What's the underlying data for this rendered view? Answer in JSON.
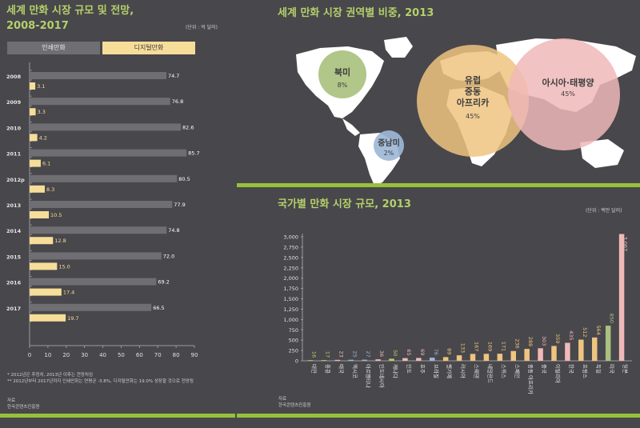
{
  "left": {
    "title_line1": "세계 만화 시장 규모 및 전망,",
    "title_line2": "2008-2017",
    "unit": "(단위 : 억 달러)",
    "legend_print": "인쇄만화",
    "legend_digital": "디지털만화",
    "footnote1": "* 2012년은 추정치, 2013년 이후는 전망치임",
    "footnote2": "** 2012년부터 2017년까지 인쇄만화는 연평균 -3.8%, 디지털만화는 19.0% 성장할 것으로 전망됨",
    "source_label": "자료",
    "source_text": "한국콘텐츠진흥원"
  },
  "map": {
    "title": "세계 만화 시장 권역별 비중, 2013",
    "regions": [
      {
        "name": "북미",
        "pct": "8%"
      },
      {
        "name": "중남미",
        "pct": "2%"
      },
      {
        "name": "유럽\n중동\n아프리카",
        "pct": "45%"
      },
      {
        "name": "아시아·태평양",
        "pct": "45%"
      }
    ]
  },
  "country": {
    "title": "국가별 만화 시장 규모, 2013",
    "unit": "(단위 : 백만 달러)",
    "source_label": "자료",
    "source_text": "한국콘텐츠진흥원"
  },
  "colors": {
    "background": "#48474b",
    "print_bar": "#6f6e72",
    "digital_bar": "#f6dd99",
    "accent_green": "#97c13c",
    "title_green": "#b4d06a",
    "north_america": "#aac17f",
    "latin_america": "#9db7d6",
    "europe": "#eec480",
    "asia": "#f0b9b9"
  },
  "chart_data": [
    {
      "type": "bar",
      "title": "세계 만화 시장 규모 및 전망, 2008-2017",
      "orientation": "horizontal",
      "categories": [
        "2008",
        "2009",
        "2010",
        "2011",
        "2012p",
        "2013",
        "2014",
        "2015",
        "2016",
        "2017"
      ],
      "series": [
        {
          "name": "인쇄만화",
          "values": [
            74.7,
            76.8,
            82.6,
            85.7,
            80.5,
            77.9,
            74.8,
            72.0,
            69.2,
            66.5
          ]
        },
        {
          "name": "디지털만화",
          "values": [
            3.1,
            3.3,
            4.2,
            6.1,
            8.3,
            10.5,
            12.8,
            15.0,
            17.4,
            19.7
          ]
        }
      ],
      "value_labels": {
        "print": [
          "74.7",
          "76.8",
          "82.6",
          "85.7",
          "80.5",
          "77.9",
          "74.8",
          "72.0",
          "69.2",
          "66.5"
        ],
        "digital": [
          "3.1",
          "3.3",
          "4.2",
          "6.1",
          "8.3",
          "10.5",
          "12.8",
          "15.0",
          "17.4",
          "19.7"
        ]
      },
      "xlim": [
        0,
        90
      ],
      "xticks": [
        "0",
        "10",
        "20",
        "30",
        "40",
        "50",
        "60",
        "70",
        "80",
        "90"
      ],
      "legend": "top"
    },
    {
      "type": "bar",
      "title": "국가별 만화 시장 규모, 2013",
      "categories": [
        "대만",
        "홍콩",
        "태국",
        "멕시코",
        "아르헨티나",
        "인도네시아",
        "캐나다",
        "인도",
        "호주",
        "브라질",
        "벨기에",
        "러시아",
        "스웨덴",
        "네덜란드",
        "스위스",
        "스페인",
        "중동 아프리카",
        "중국",
        "이탈리아",
        "한국",
        "프랑스",
        "독일",
        "미국",
        "일본"
      ],
      "values": [
        16,
        17,
        23,
        25,
        27,
        36,
        50,
        65,
        69,
        76,
        89,
        133,
        167,
        169,
        171,
        236,
        288,
        303,
        359,
        435,
        512,
        564,
        850,
        3067
      ],
      "value_labels": [
        "16",
        "17",
        "23",
        "25",
        "27",
        "36",
        "50",
        "65",
        "69",
        "76",
        "89",
        "133",
        "167",
        "169",
        "171",
        "236",
        "288",
        "303",
        "359",
        "435",
        "512",
        "564",
        "850",
        "3,067"
      ],
      "bar_colors": [
        "#b4d06a",
        "#b4d06a",
        "#f0b9b9",
        "#9db7d6",
        "#9db7d6",
        "#f0b9b9",
        "#b4d06a",
        "#f0b9b9",
        "#f0b9b9",
        "#9db7d6",
        "#eec480",
        "#eec480",
        "#eec480",
        "#eec480",
        "#eec480",
        "#eec480",
        "#eec480",
        "#f0b9b9",
        "#eec480",
        "#f0b9b9",
        "#eec480",
        "#eec480",
        "#aac17f",
        "#f0b9b9"
      ],
      "ylim": [
        0,
        3000
      ],
      "yticks": [
        "0",
        "250",
        "500",
        "750",
        "1,000",
        "1,250",
        "1,500",
        "1,750",
        "2,000",
        "2,250",
        "2,500",
        "2,750",
        "3,000"
      ]
    }
  ]
}
